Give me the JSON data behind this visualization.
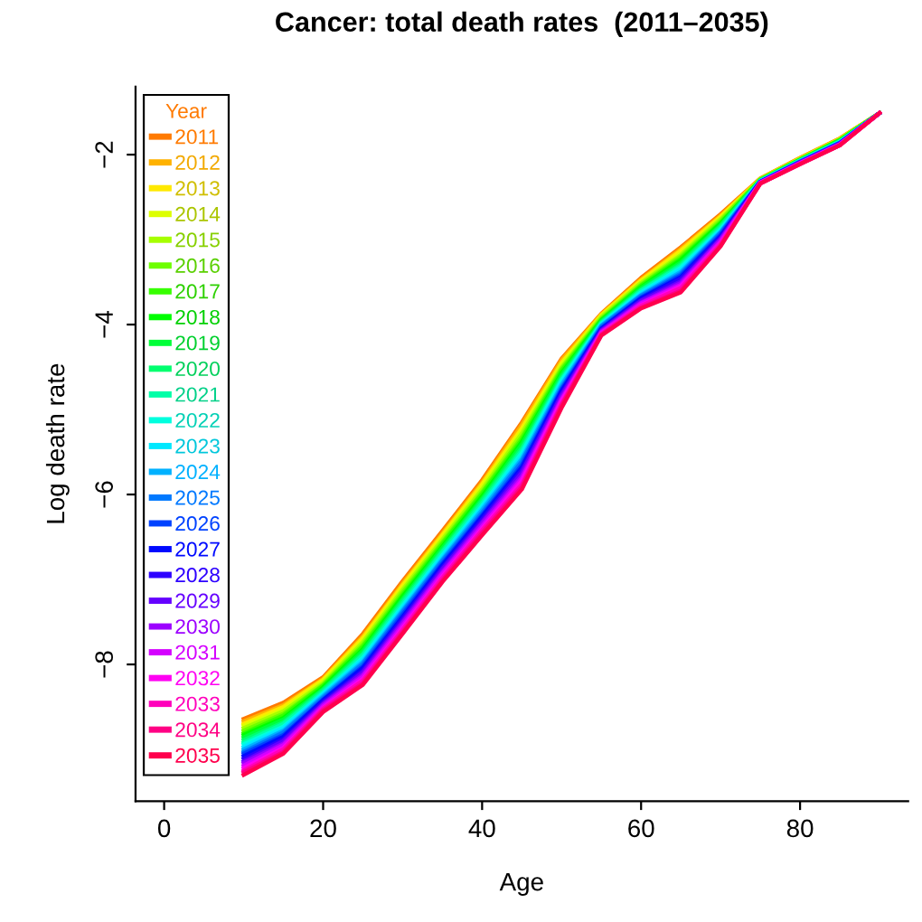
{
  "chart_data": {
    "type": "line",
    "title": "Cancer: total death rates  (2011–2035)",
    "xlabel": "Age",
    "ylabel": "Log death rate",
    "legend_title": "Year",
    "legend": "left",
    "grid": false,
    "marker": "none",
    "line_style": "solid",
    "x": [
      10,
      15,
      20,
      25,
      30,
      35,
      40,
      45,
      50,
      55,
      60,
      65,
      70,
      75,
      80,
      85,
      90
    ],
    "xlim": [
      -3.6,
      93.6
    ],
    "ylim": [
      -9.61,
      -1.2
    ],
    "xticks": [
      0,
      20,
      40,
      60,
      80
    ],
    "yticks": [
      {
        "value": -8,
        "label": "−8"
      },
      {
        "value": -6,
        "label": "−6"
      },
      {
        "value": -4,
        "label": "−4"
      },
      {
        "value": -2,
        "label": "−2"
      }
    ],
    "series": [
      {
        "name": "2011",
        "color": "#ff7a00",
        "values": [
          -8.64,
          -8.45,
          -8.15,
          -7.64,
          -7.02,
          -6.43,
          -5.83,
          -5.15,
          -4.4,
          -3.87,
          -3.45,
          -3.09,
          -2.7,
          -2.28,
          -2.04,
          -1.81,
          -1.51
        ]
      },
      {
        "name": "2012",
        "color": "#ffb200",
        "values": [
          -8.67,
          -8.48,
          -8.17,
          -7.67,
          -7.05,
          -6.46,
          -5.86,
          -5.18,
          -4.42,
          -3.88,
          -3.47,
          -3.11,
          -2.72,
          -2.28,
          -2.04,
          -1.81,
          -1.51
        ]
      },
      {
        "name": "2013",
        "color": "#ffe900",
        "values": [
          -8.7,
          -8.5,
          -8.18,
          -7.69,
          -7.07,
          -6.48,
          -5.88,
          -5.22,
          -4.45,
          -3.89,
          -3.48,
          -3.13,
          -2.73,
          -2.29,
          -2.05,
          -1.82,
          -1.51
        ]
      },
      {
        "name": "2014",
        "color": "#ddff00",
        "values": [
          -8.72,
          -8.53,
          -8.2,
          -7.72,
          -7.1,
          -6.51,
          -5.91,
          -5.25,
          -4.47,
          -3.9,
          -3.5,
          -3.16,
          -2.75,
          -2.29,
          -2.05,
          -1.82,
          -1.51
        ]
      },
      {
        "name": "2015",
        "color": "#a6ff00",
        "values": [
          -8.75,
          -8.55,
          -8.22,
          -7.74,
          -7.12,
          -6.53,
          -5.94,
          -5.28,
          -4.5,
          -3.91,
          -3.51,
          -3.18,
          -2.76,
          -2.29,
          -2.05,
          -1.82,
          -1.51
        ]
      },
      {
        "name": "2016",
        "color": "#6eff00",
        "values": [
          -8.78,
          -8.58,
          -8.24,
          -7.77,
          -7.15,
          -6.56,
          -5.97,
          -5.32,
          -4.52,
          -3.93,
          -3.53,
          -3.2,
          -2.78,
          -2.29,
          -2.06,
          -1.83,
          -1.51
        ]
      },
      {
        "name": "2017",
        "color": "#37ff00",
        "values": [
          -8.81,
          -8.6,
          -8.25,
          -7.79,
          -7.18,
          -6.58,
          -5.99,
          -5.35,
          -4.54,
          -3.94,
          -3.54,
          -3.22,
          -2.8,
          -2.3,
          -2.06,
          -1.83,
          -1.51
        ]
      },
      {
        "name": "2018",
        "color": "#00ff01",
        "values": [
          -8.83,
          -8.63,
          -8.27,
          -7.82,
          -7.2,
          -6.61,
          -6.02,
          -5.38,
          -4.57,
          -3.95,
          -3.56,
          -3.24,
          -2.81,
          -2.3,
          -2.06,
          -1.83,
          -1.51
        ]
      },
      {
        "name": "2019",
        "color": "#00ff38",
        "values": [
          -8.86,
          -8.65,
          -8.29,
          -7.84,
          -7.23,
          -6.63,
          -6.05,
          -5.41,
          -4.59,
          -3.96,
          -3.57,
          -3.27,
          -2.83,
          -2.3,
          -2.06,
          -1.84,
          -1.51
        ]
      },
      {
        "name": "2020",
        "color": "#00ff6f",
        "values": [
          -8.89,
          -8.68,
          -8.3,
          -7.87,
          -7.25,
          -6.66,
          -6.07,
          -5.45,
          -4.62,
          -3.97,
          -3.59,
          -3.29,
          -2.84,
          -2.3,
          -2.07,
          -1.84,
          -1.51
        ]
      },
      {
        "name": "2021",
        "color": "#00ffa7",
        "values": [
          -8.92,
          -8.7,
          -8.32,
          -7.89,
          -7.28,
          -6.68,
          -6.1,
          -5.48,
          -4.64,
          -3.98,
          -3.6,
          -3.31,
          -2.86,
          -2.31,
          -2.07,
          -1.85,
          -1.51
        ]
      },
      {
        "name": "2022",
        "color": "#00ffde",
        "values": [
          -8.94,
          -8.73,
          -8.34,
          -7.92,
          -7.31,
          -6.71,
          -6.13,
          -5.51,
          -4.66,
          -3.99,
          -3.62,
          -3.33,
          -2.88,
          -2.31,
          -2.07,
          -1.85,
          -1.51
        ]
      },
      {
        "name": "2023",
        "color": "#00e8ff",
        "values": [
          -8.97,
          -8.75,
          -8.35,
          -7.94,
          -7.33,
          -6.73,
          -6.15,
          -5.55,
          -4.69,
          -4.0,
          -3.63,
          -3.35,
          -2.89,
          -2.31,
          -2.08,
          -1.85,
          -1.51
        ]
      },
      {
        "name": "2024",
        "color": "#00b1ff",
        "values": [
          -9.0,
          -8.78,
          -8.37,
          -7.97,
          -7.36,
          -6.76,
          -6.18,
          -5.58,
          -4.71,
          -4.01,
          -3.65,
          -3.38,
          -2.91,
          -2.31,
          -2.08,
          -1.86,
          -1.51
        ]
      },
      {
        "name": "2025",
        "color": "#0079ff",
        "values": [
          -9.03,
          -8.8,
          -8.39,
          -7.99,
          -7.38,
          -6.78,
          -6.21,
          -5.61,
          -4.74,
          -4.02,
          -3.66,
          -3.4,
          -2.92,
          -2.32,
          -2.08,
          -1.86,
          -1.51
        ]
      },
      {
        "name": "2026",
        "color": "#0042ff",
        "values": [
          -9.05,
          -8.83,
          -8.41,
          -8.02,
          -7.41,
          -6.81,
          -6.24,
          -5.65,
          -4.76,
          -4.04,
          -3.68,
          -3.42,
          -2.94,
          -2.32,
          -2.09,
          -1.86,
          -1.51
        ]
      },
      {
        "name": "2027",
        "color": "#000aff",
        "values": [
          -9.08,
          -8.85,
          -8.42,
          -8.04,
          -7.44,
          -6.83,
          -6.26,
          -5.68,
          -4.78,
          -4.05,
          -3.69,
          -3.44,
          -2.96,
          -2.32,
          -2.09,
          -1.87,
          -1.51
        ]
      },
      {
        "name": "2028",
        "color": "#2d00ff",
        "values": [
          -9.11,
          -8.88,
          -8.44,
          -8.07,
          -7.46,
          -6.86,
          -6.29,
          -5.71,
          -4.81,
          -4.06,
          -3.71,
          -3.46,
          -2.97,
          -2.32,
          -2.09,
          -1.87,
          -1.51
        ]
      },
      {
        "name": "2029",
        "color": "#6500ff",
        "values": [
          -9.14,
          -8.9,
          -8.46,
          -8.09,
          -7.49,
          -6.88,
          -6.32,
          -5.74,
          -4.83,
          -4.07,
          -3.72,
          -3.49,
          -2.99,
          -2.33,
          -2.09,
          -1.87,
          -1.51
        ]
      },
      {
        "name": "2030",
        "color": "#9c00ff",
        "values": [
          -9.16,
          -8.93,
          -8.47,
          -8.12,
          -7.51,
          -6.91,
          -6.34,
          -5.78,
          -4.86,
          -4.08,
          -3.74,
          -3.51,
          -3.0,
          -2.33,
          -2.1,
          -1.88,
          -1.51
        ]
      },
      {
        "name": "2031",
        "color": "#d400ff",
        "values": [
          -9.19,
          -8.95,
          -8.49,
          -8.14,
          -7.54,
          -6.93,
          -6.37,
          -5.81,
          -4.88,
          -4.09,
          -3.75,
          -3.53,
          -3.02,
          -2.33,
          -2.1,
          -1.88,
          -1.51
        ]
      },
      {
        "name": "2032",
        "color": "#ff00f3",
        "values": [
          -9.22,
          -8.98,
          -8.51,
          -8.17,
          -7.57,
          -6.96,
          -6.4,
          -5.84,
          -4.9,
          -4.1,
          -3.77,
          -3.55,
          -3.04,
          -2.33,
          -2.1,
          -1.88,
          -1.51
        ]
      },
      {
        "name": "2033",
        "color": "#ff00bb",
        "values": [
          -9.25,
          -9.0,
          -8.52,
          -8.19,
          -7.59,
          -6.98,
          -6.42,
          -5.88,
          -4.93,
          -4.11,
          -3.78,
          -3.57,
          -3.05,
          -2.34,
          -2.11,
          -1.89,
          -1.51
        ]
      },
      {
        "name": "2034",
        "color": "#ff0084",
        "values": [
          -9.27,
          -9.03,
          -8.54,
          -8.22,
          -7.62,
          -7.01,
          -6.45,
          -5.91,
          -4.95,
          -4.12,
          -3.8,
          -3.6,
          -3.07,
          -2.34,
          -2.11,
          -1.89,
          -1.51
        ]
      },
      {
        "name": "2035",
        "color": "#ff004d",
        "values": [
          -9.3,
          -9.05,
          -8.56,
          -8.24,
          -7.64,
          -7.03,
          -6.48,
          -5.94,
          -4.98,
          -4.13,
          -3.81,
          -3.62,
          -3.08,
          -2.34,
          -2.11,
          -1.89,
          -1.51
        ]
      }
    ]
  }
}
